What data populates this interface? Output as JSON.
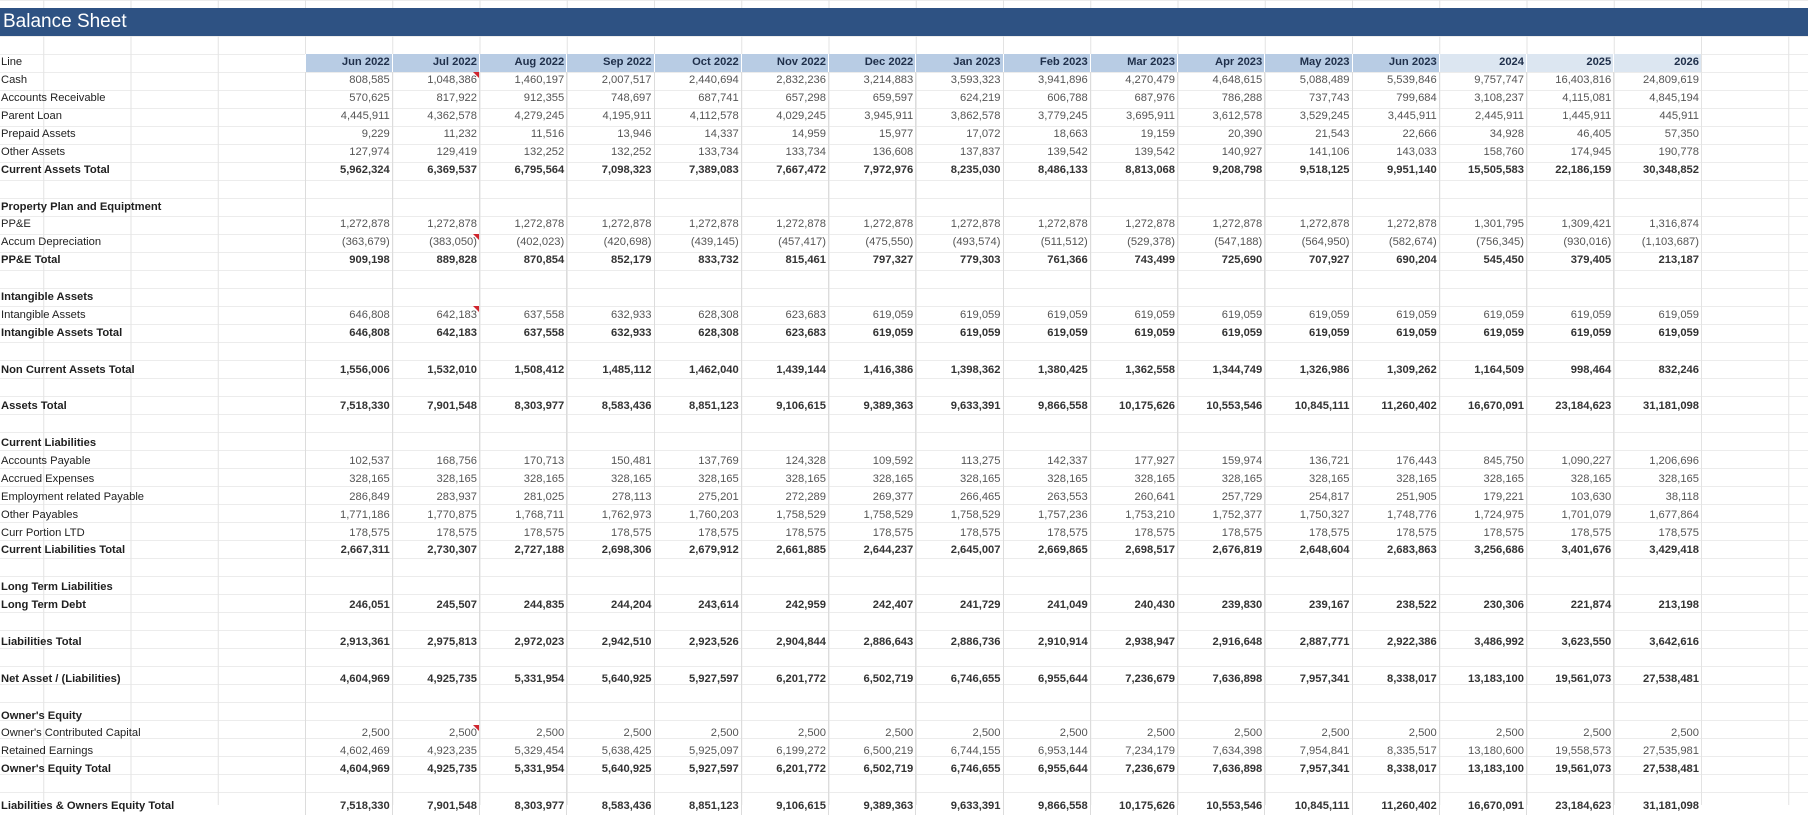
{
  "sheet": {
    "title": "Balance Sheet"
  },
  "columns": [
    "Jun 2022",
    "Jul 2022",
    "Aug 2022",
    "Sep 2022",
    "Oct 2022",
    "Nov 2022",
    "Dec 2022",
    "Jan 2023",
    "Feb 2023",
    "Mar 2023",
    "Apr 2023",
    "May 2023",
    "Jun 2023",
    "2024",
    "2025",
    "2026"
  ],
  "header_label": "Line",
  "rows": [
    {
      "label": "Cash",
      "values": [
        "808,585",
        "1,048,386",
        "1,460,197",
        "2,007,517",
        "2,440,694",
        "2,832,236",
        "3,214,883",
        "3,593,323",
        "3,941,896",
        "4,270,479",
        "4,648,615",
        "5,088,489",
        "5,539,846",
        "9,757,747",
        "16,403,816",
        "24,809,619"
      ],
      "flag": [
        1
      ]
    },
    {
      "label": "Accounts Receivable",
      "values": [
        "570,625",
        "817,922",
        "912,355",
        "748,697",
        "687,741",
        "657,298",
        "659,597",
        "624,219",
        "606,788",
        "687,976",
        "786,288",
        "737,743",
        "799,684",
        "3,108,237",
        "4,115,081",
        "4,845,194"
      ]
    },
    {
      "label": "Parent Loan",
      "values": [
        "4,445,911",
        "4,362,578",
        "4,279,245",
        "4,195,911",
        "4,112,578",
        "4,029,245",
        "3,945,911",
        "3,862,578",
        "3,779,245",
        "3,695,911",
        "3,612,578",
        "3,529,245",
        "3,445,911",
        "2,445,911",
        "1,445,911",
        "445,911"
      ]
    },
    {
      "label": "Prepaid Assets",
      "values": [
        "9,229",
        "11,232",
        "11,516",
        "13,946",
        "14,337",
        "14,959",
        "15,977",
        "17,072",
        "18,663",
        "19,159",
        "20,390",
        "21,543",
        "22,666",
        "34,928",
        "46,405",
        "57,350"
      ]
    },
    {
      "label": "Other Assets",
      "values": [
        "127,974",
        "129,419",
        "132,252",
        "132,252",
        "133,734",
        "133,734",
        "136,608",
        "137,837",
        "139,542",
        "139,542",
        "140,927",
        "141,106",
        "143,033",
        "158,760",
        "174,945",
        "190,778"
      ]
    },
    {
      "label": "Current Assets Total",
      "values": [
        "5,962,324",
        "6,369,537",
        "6,795,564",
        "7,098,323",
        "7,389,083",
        "7,667,472",
        "7,972,976",
        "8,235,030",
        "8,486,133",
        "8,813,068",
        "9,208,798",
        "9,518,125",
        "9,951,140",
        "15,505,583",
        "22,186,159",
        "30,348,852"
      ],
      "style": "bold"
    },
    {
      "style": "blank"
    },
    {
      "label": "Property Plan and Equiptment",
      "style": "section"
    },
    {
      "label": "PP&E",
      "values": [
        "1,272,878",
        "1,272,878",
        "1,272,878",
        "1,272,878",
        "1,272,878",
        "1,272,878",
        "1,272,878",
        "1,272,878",
        "1,272,878",
        "1,272,878",
        "1,272,878",
        "1,272,878",
        "1,272,878",
        "1,301,795",
        "1,309,421",
        "1,316,874"
      ]
    },
    {
      "label": "Accum Depreciation",
      "values": [
        "(363,679)",
        "(383,050)",
        "(402,023)",
        "(420,698)",
        "(439,145)",
        "(457,417)",
        "(475,550)",
        "(493,574)",
        "(511,512)",
        "(529,378)",
        "(547,188)",
        "(564,950)",
        "(582,674)",
        "(756,345)",
        "(930,016)",
        "(1,103,687)"
      ],
      "flag": [
        1
      ]
    },
    {
      "label": "PP&E Total",
      "values": [
        "909,198",
        "889,828",
        "870,854",
        "852,179",
        "833,732",
        "815,461",
        "797,327",
        "779,303",
        "761,366",
        "743,499",
        "725,690",
        "707,927",
        "690,204",
        "545,450",
        "379,405",
        "213,187"
      ],
      "style": "bold"
    },
    {
      "style": "blank"
    },
    {
      "label": "Intangible Assets",
      "style": "section"
    },
    {
      "label": "Intangible Assets",
      "values": [
        "646,808",
        "642,183",
        "637,558",
        "632,933",
        "628,308",
        "623,683",
        "619,059",
        "619,059",
        "619,059",
        "619,059",
        "619,059",
        "619,059",
        "619,059",
        "619,059",
        "619,059",
        "619,059"
      ],
      "flag": [
        1
      ]
    },
    {
      "label": "Intangible Assets Total",
      "values": [
        "646,808",
        "642,183",
        "637,558",
        "632,933",
        "628,308",
        "623,683",
        "619,059",
        "619,059",
        "619,059",
        "619,059",
        "619,059",
        "619,059",
        "619,059",
        "619,059",
        "619,059",
        "619,059"
      ],
      "style": "bold"
    },
    {
      "style": "blank"
    },
    {
      "label": "Non Current Assets Total",
      "values": [
        "1,556,006",
        "1,532,010",
        "1,508,412",
        "1,485,112",
        "1,462,040",
        "1,439,144",
        "1,416,386",
        "1,398,362",
        "1,380,425",
        "1,362,558",
        "1,344,749",
        "1,326,986",
        "1,309,262",
        "1,164,509",
        "998,464",
        "832,246"
      ],
      "style": "bold"
    },
    {
      "style": "blank"
    },
    {
      "label": "Assets Total",
      "values": [
        "7,518,330",
        "7,901,548",
        "8,303,977",
        "8,583,436",
        "8,851,123",
        "9,106,615",
        "9,389,363",
        "9,633,391",
        "9,866,558",
        "10,175,626",
        "10,553,546",
        "10,845,111",
        "11,260,402",
        "16,670,091",
        "23,184,623",
        "31,181,098"
      ],
      "style": "bold"
    },
    {
      "style": "blank"
    },
    {
      "label": "Current Liabilities",
      "style": "section"
    },
    {
      "label": "Accounts Payable",
      "values": [
        "102,537",
        "168,756",
        "170,713",
        "150,481",
        "137,769",
        "124,328",
        "109,592",
        "113,275",
        "142,337",
        "177,927",
        "159,974",
        "136,721",
        "176,443",
        "845,750",
        "1,090,227",
        "1,206,696"
      ]
    },
    {
      "label": "Accrued Expenses",
      "values": [
        "328,165",
        "328,165",
        "328,165",
        "328,165",
        "328,165",
        "328,165",
        "328,165",
        "328,165",
        "328,165",
        "328,165",
        "328,165",
        "328,165",
        "328,165",
        "328,165",
        "328,165",
        "328,165"
      ]
    },
    {
      "label": "Employment related Payable",
      "values": [
        "286,849",
        "283,937",
        "281,025",
        "278,113",
        "275,201",
        "272,289",
        "269,377",
        "266,465",
        "263,553",
        "260,641",
        "257,729",
        "254,817",
        "251,905",
        "179,221",
        "103,630",
        "38,118"
      ]
    },
    {
      "label": "Other Payables",
      "values": [
        "1,771,186",
        "1,770,875",
        "1,768,711",
        "1,762,973",
        "1,760,203",
        "1,758,529",
        "1,758,529",
        "1,758,529",
        "1,757,236",
        "1,753,210",
        "1,752,377",
        "1,750,327",
        "1,748,776",
        "1,724,975",
        "1,701,079",
        "1,677,864"
      ]
    },
    {
      "label": "Curr Portion LTD",
      "values": [
        "178,575",
        "178,575",
        "178,575",
        "178,575",
        "178,575",
        "178,575",
        "178,575",
        "178,575",
        "178,575",
        "178,575",
        "178,575",
        "178,575",
        "178,575",
        "178,575",
        "178,575",
        "178,575"
      ]
    },
    {
      "label": "Current Liabilities Total",
      "values": [
        "2,667,311",
        "2,730,307",
        "2,727,188",
        "2,698,306",
        "2,679,912",
        "2,661,885",
        "2,644,237",
        "2,645,007",
        "2,669,865",
        "2,698,517",
        "2,676,819",
        "2,648,604",
        "2,683,863",
        "3,256,686",
        "3,401,676",
        "3,429,418"
      ],
      "style": "bold"
    },
    {
      "style": "blank"
    },
    {
      "label": "Long Term Liabilities",
      "style": "section"
    },
    {
      "label": "Long Term Debt",
      "values": [
        "246,051",
        "245,507",
        "244,835",
        "244,204",
        "243,614",
        "242,959",
        "242,407",
        "241,729",
        "241,049",
        "240,430",
        "239,830",
        "239,167",
        "238,522",
        "230,306",
        "221,874",
        "213,198"
      ],
      "style": "bold"
    },
    {
      "style": "blank"
    },
    {
      "label": "Liabilities Total",
      "values": [
        "2,913,361",
        "2,975,813",
        "2,972,023",
        "2,942,510",
        "2,923,526",
        "2,904,844",
        "2,886,643",
        "2,886,736",
        "2,910,914",
        "2,938,947",
        "2,916,648",
        "2,887,771",
        "2,922,386",
        "3,486,992",
        "3,623,550",
        "3,642,616"
      ],
      "style": "bold"
    },
    {
      "style": "blank"
    },
    {
      "label": "Net Asset / (Liabilities)",
      "values": [
        "4,604,969",
        "4,925,735",
        "5,331,954",
        "5,640,925",
        "5,927,597",
        "6,201,772",
        "6,502,719",
        "6,746,655",
        "6,955,644",
        "7,236,679",
        "7,636,898",
        "7,957,341",
        "8,338,017",
        "13,183,100",
        "19,561,073",
        "27,538,481"
      ],
      "style": "bold"
    },
    {
      "style": "blank"
    },
    {
      "label": "Owner's Equity",
      "style": "section"
    },
    {
      "label": "Owner's Contributed Capital",
      "values": [
        "2,500",
        "2,500",
        "2,500",
        "2,500",
        "2,500",
        "2,500",
        "2,500",
        "2,500",
        "2,500",
        "2,500",
        "2,500",
        "2,500",
        "2,500",
        "2,500",
        "2,500",
        "2,500"
      ],
      "flag": [
        1
      ]
    },
    {
      "label": "Retained Earnings",
      "values": [
        "4,602,469",
        "4,923,235",
        "5,329,454",
        "5,638,425",
        "5,925,097",
        "6,199,272",
        "6,500,219",
        "6,744,155",
        "6,953,144",
        "7,234,179",
        "7,634,398",
        "7,954,841",
        "8,335,517",
        "13,180,600",
        "19,558,573",
        "27,535,981"
      ]
    },
    {
      "label": "Owner's Equity Total",
      "values": [
        "4,604,969",
        "4,925,735",
        "5,331,954",
        "5,640,925",
        "5,927,597",
        "6,201,772",
        "6,502,719",
        "6,746,655",
        "6,955,644",
        "7,236,679",
        "7,636,898",
        "7,957,341",
        "8,338,017",
        "13,183,100",
        "19,561,073",
        "27,538,481"
      ],
      "style": "bold"
    },
    {
      "style": "blank"
    },
    {
      "label": "Liabilities & Owners Equity Total",
      "values": [
        "7,518,330",
        "7,901,548",
        "8,303,977",
        "8,583,436",
        "8,851,123",
        "9,106,615",
        "9,389,363",
        "9,633,391",
        "9,866,558",
        "10,175,626",
        "10,553,546",
        "10,845,111",
        "11,260,402",
        "16,670,091",
        "23,184,623",
        "31,181,098"
      ],
      "style": "bold"
    }
  ]
}
